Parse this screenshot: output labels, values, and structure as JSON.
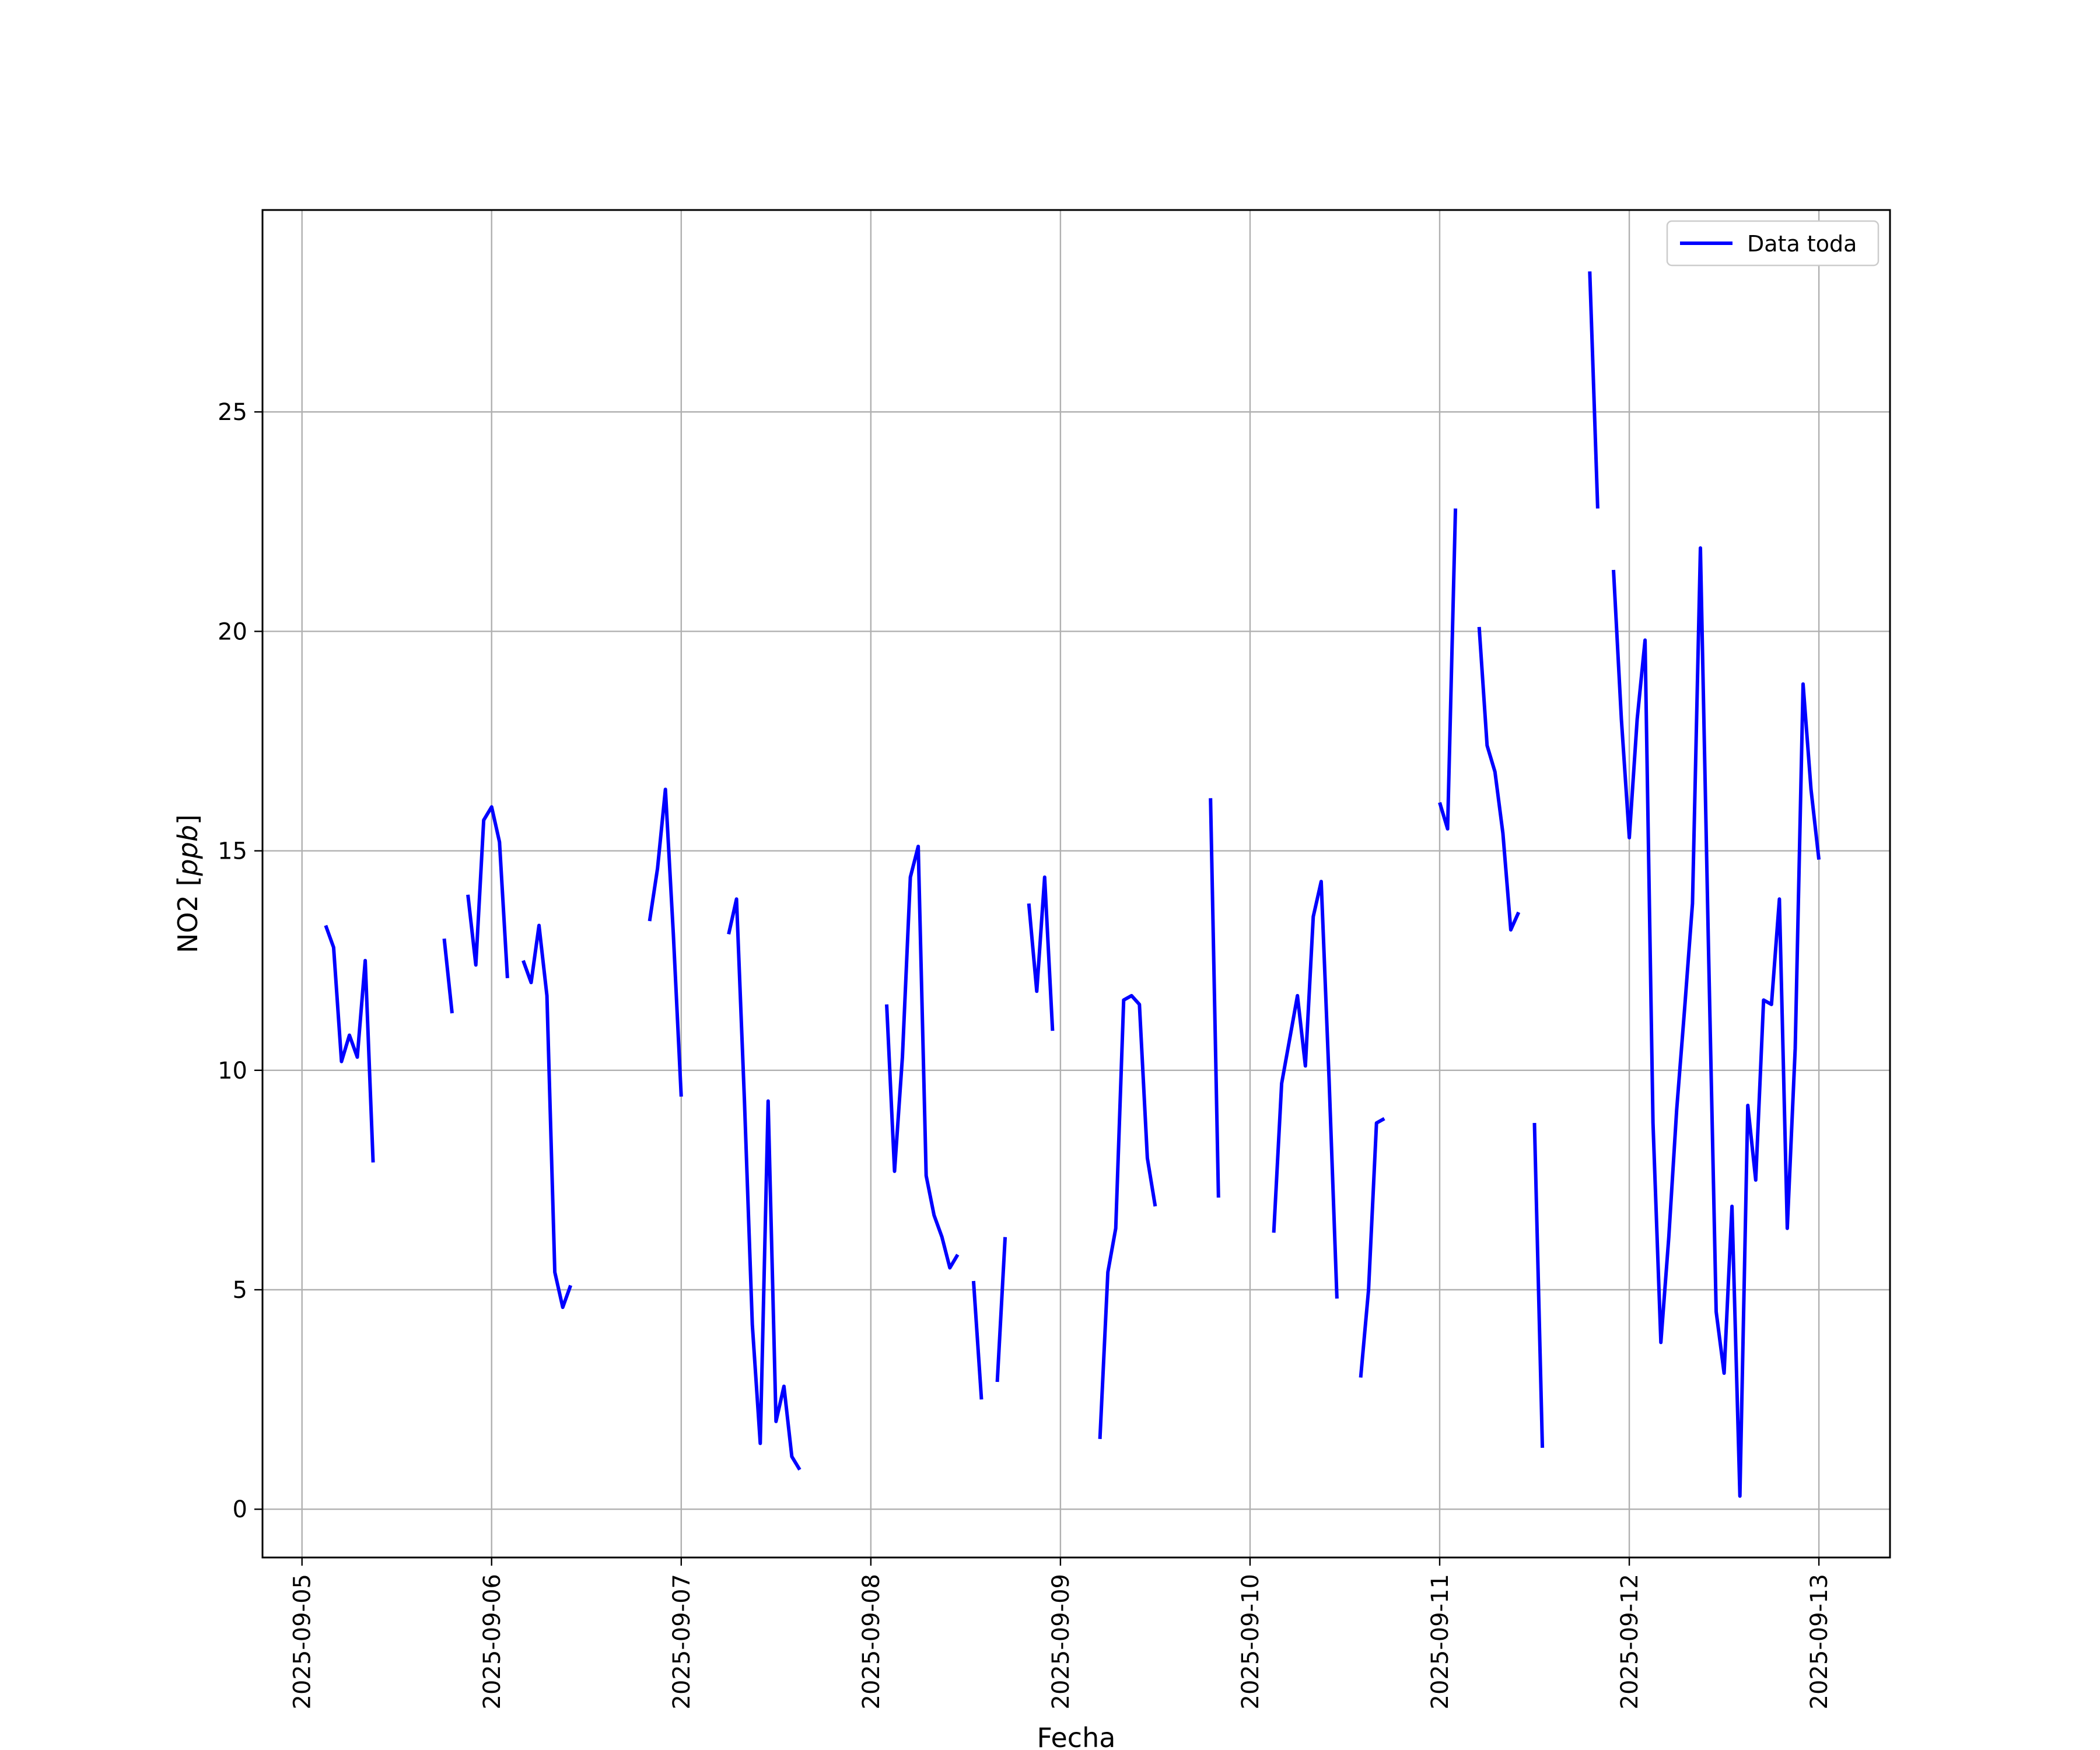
{
  "chart_data": {
    "type": "line",
    "title": "",
    "xlabel": "Fecha",
    "ylabel": "NO2 [ppb]",
    "ylabel_parts": {
      "prefix": "NO2 [",
      "unit_italic": "ppb",
      "suffix": "]"
    },
    "xlim": [
      "2025-09-04 19:00",
      "2025-09-13 09:00"
    ],
    "ylim": [
      -1.1,
      29.6
    ],
    "x_ticks": [
      "2025-09-05",
      "2025-09-06",
      "2025-09-07",
      "2025-09-08",
      "2025-09-09",
      "2025-09-10",
      "2025-09-11",
      "2025-09-12",
      "2025-09-13"
    ],
    "y_ticks": [
      0,
      5,
      10,
      15,
      20,
      25
    ],
    "grid": true,
    "legend_position": "top-right",
    "series": [
      {
        "name": "Data toda",
        "color": "#0000ff",
        "segments": [
          [
            [
              "2025-09-05 03:00",
              13.3
            ],
            [
              "2025-09-05 04:00",
              12.8
            ],
            [
              "2025-09-05 05:00",
              10.2
            ],
            [
              "2025-09-05 06:00",
              10.8
            ],
            [
              "2025-09-05 07:00",
              10.3
            ],
            [
              "2025-09-05 08:00",
              12.5
            ],
            [
              "2025-09-05 09:00",
              7.9
            ]
          ],
          [
            [
              "2025-09-05 18:00",
              13.0
            ],
            [
              "2025-09-05 19:00",
              11.3
            ]
          ],
          [
            [
              "2025-09-05 21:00",
              14.0
            ],
            [
              "2025-09-05 22:00",
              12.4
            ],
            [
              "2025-09-05 23:00",
              15.7
            ],
            [
              "2025-09-06 00:00",
              16.0
            ],
            [
              "2025-09-06 01:00",
              15.2
            ],
            [
              "2025-09-06 02:00",
              12.1
            ]
          ],
          [
            [
              "2025-09-06 04:00",
              12.5
            ],
            [
              "2025-09-06 05:00",
              12.0
            ],
            [
              "2025-09-06 06:00",
              13.3
            ],
            [
              "2025-09-06 07:00",
              11.7
            ],
            [
              "2025-09-06 08:00",
              5.4
            ],
            [
              "2025-09-06 09:00",
              4.6
            ],
            [
              "2025-09-06 10:00",
              5.1
            ]
          ],
          [
            [
              "2025-09-06 20:00",
              13.4
            ],
            [
              "2025-09-06 21:00",
              14.6
            ],
            [
              "2025-09-06 22:00",
              16.4
            ],
            [
              "2025-09-06 23:00",
              13.1
            ],
            [
              "2025-09-07 00:00",
              9.4
            ]
          ],
          [
            [
              "2025-09-07 06:00",
              13.1
            ],
            [
              "2025-09-07 07:00",
              13.9
            ],
            [
              "2025-09-07 08:00",
              9.3
            ],
            [
              "2025-09-07 09:00",
              4.2
            ],
            [
              "2025-09-07 10:00",
              1.5
            ],
            [
              "2025-09-07 11:00",
              9.3
            ],
            [
              "2025-09-07 12:00",
              2.0
            ],
            [
              "2025-09-07 13:00",
              2.8
            ],
            [
              "2025-09-07 14:00",
              1.2
            ],
            [
              "2025-09-07 15:00",
              0.9
            ]
          ],
          [
            [
              "2025-09-08 02:00",
              11.5
            ],
            [
              "2025-09-08 03:00",
              7.7
            ],
            [
              "2025-09-08 04:00",
              10.3
            ],
            [
              "2025-09-08 05:00",
              14.4
            ],
            [
              "2025-09-08 06:00",
              15.1
            ],
            [
              "2025-09-08 07:00",
              7.6
            ],
            [
              "2025-09-08 08:00",
              6.7
            ],
            [
              "2025-09-08 09:00",
              6.2
            ],
            [
              "2025-09-08 10:00",
              5.5
            ],
            [
              "2025-09-08 11:00",
              5.8
            ]
          ],
          [
            [
              "2025-09-08 13:00",
              5.2
            ],
            [
              "2025-09-08 14:00",
              2.5
            ]
          ],
          [
            [
              "2025-09-08 16:00",
              2.9
            ],
            [
              "2025-09-08 17:00",
              6.2
            ]
          ],
          [
            [
              "2025-09-08 20:00",
              13.8
            ],
            [
              "2025-09-08 21:00",
              11.8
            ],
            [
              "2025-09-08 22:00",
              14.4
            ],
            [
              "2025-09-08 23:00",
              10.9
            ]
          ],
          [
            [
              "2025-09-09 05:00",
              1.6
            ],
            [
              "2025-09-09 06:00",
              5.4
            ],
            [
              "2025-09-09 07:00",
              6.4
            ],
            [
              "2025-09-09 08:00",
              11.6
            ],
            [
              "2025-09-09 09:00",
              11.7
            ],
            [
              "2025-09-09 10:00",
              11.5
            ],
            [
              "2025-09-09 11:00",
              8.0
            ],
            [
              "2025-09-09 12:00",
              6.9
            ]
          ],
          [
            [
              "2025-09-09 19:00",
              16.2
            ],
            [
              "2025-09-09 20:00",
              7.1
            ]
          ],
          [
            [
              "2025-09-10 03:00",
              6.3
            ],
            [
              "2025-09-10 04:00",
              9.7
            ],
            [
              "2025-09-10 05:00",
              10.7
            ],
            [
              "2025-09-10 06:00",
              11.7
            ],
            [
              "2025-09-10 07:00",
              10.1
            ],
            [
              "2025-09-10 08:00",
              13.5
            ],
            [
              "2025-09-10 09:00",
              14.3
            ],
            [
              "2025-09-10 10:00",
              9.8
            ],
            [
              "2025-09-10 11:00",
              4.8
            ]
          ],
          [
            [
              "2025-09-10 14:00",
              3.0
            ],
            [
              "2025-09-10 15:00",
              5.0
            ],
            [
              "2025-09-10 16:00",
              8.8
            ],
            [
              "2025-09-10 17:00",
              8.9
            ]
          ],
          [
            [
              "2025-09-11 00:00",
              16.1
            ],
            [
              "2025-09-11 01:00",
              15.5
            ],
            [
              "2025-09-11 02:00",
              22.8
            ]
          ],
          [
            [
              "2025-09-11 05:00",
              20.1
            ],
            [
              "2025-09-11 06:00",
              17.4
            ],
            [
              "2025-09-11 07:00",
              16.8
            ],
            [
              "2025-09-11 08:00",
              15.4
            ],
            [
              "2025-09-11 09:00",
              13.2
            ],
            [
              "2025-09-11 10:00",
              13.6
            ]
          ],
          [
            [
              "2025-09-11 12:00",
              8.8
            ],
            [
              "2025-09-11 13:00",
              1.4
            ]
          ],
          [
            [
              "2025-09-11 19:00",
              28.2
            ],
            [
              "2025-09-11 20:00",
              22.8
            ]
          ],
          [
            [
              "2025-09-11 22:00",
              21.4
            ],
            [
              "2025-09-11 23:00",
              18.0
            ],
            [
              "2025-09-12 00:00",
              15.3
            ],
            [
              "2025-09-12 01:00",
              18.0
            ],
            [
              "2025-09-12 02:00",
              19.8
            ],
            [
              "2025-09-12 03:00",
              8.8
            ],
            [
              "2025-09-12 04:00",
              3.8
            ],
            [
              "2025-09-12 05:00",
              6.2
            ],
            [
              "2025-09-12 06:00",
              9.1
            ],
            [
              "2025-09-12 07:00",
              11.4
            ],
            [
              "2025-09-12 08:00",
              13.8
            ],
            [
              "2025-09-12 09:00",
              21.9
            ],
            [
              "2025-09-12 10:00",
              13.0
            ],
            [
              "2025-09-12 11:00",
              4.5
            ],
            [
              "2025-09-12 12:00",
              3.1
            ],
            [
              "2025-09-12 13:00",
              6.9
            ],
            [
              "2025-09-12 14:00",
              0.3
            ],
            [
              "2025-09-12 15:00",
              9.2
            ],
            [
              "2025-09-12 16:00",
              7.5
            ],
            [
              "2025-09-12 17:00",
              11.6
            ],
            [
              "2025-09-12 18:00",
              11.5
            ],
            [
              "2025-09-12 19:00",
              13.9
            ],
            [
              "2025-09-12 20:00",
              6.4
            ],
            [
              "2025-09-12 21:00",
              10.5
            ],
            [
              "2025-09-12 22:00",
              18.8
            ],
            [
              "2025-09-12 23:00",
              16.4
            ],
            [
              "2025-09-13 00:00",
              14.8
            ]
          ]
        ]
      }
    ]
  }
}
